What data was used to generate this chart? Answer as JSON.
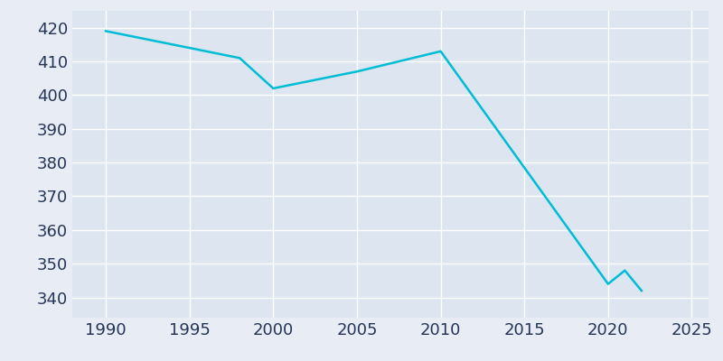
{
  "years": [
    1990,
    1998,
    2000,
    2005,
    2010,
    2020,
    2021,
    2022
  ],
  "population": [
    419,
    411,
    402,
    407,
    413,
    344,
    348,
    342
  ],
  "line_color": "#00BCD4",
  "line_width": 1.8,
  "fig_bg_color": "#e8edf5",
  "plot_bg_color": "#dce5f0",
  "grid_color": "#ffffff",
  "xlim": [
    1988,
    2026
  ],
  "ylim": [
    334,
    425
  ],
  "xticks": [
    1990,
    1995,
    2000,
    2005,
    2010,
    2015,
    2020,
    2025
  ],
  "yticks": [
    340,
    350,
    360,
    370,
    380,
    390,
    400,
    410,
    420
  ],
  "tick_color": "#253555",
  "tick_fontsize": 13
}
